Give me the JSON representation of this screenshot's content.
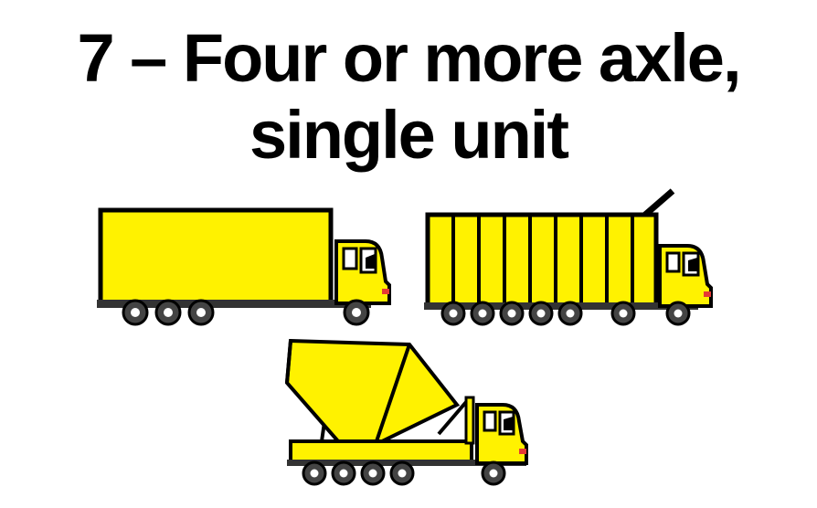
{
  "title": {
    "line1": "7 – Four or more axle,",
    "line2": "single unit"
  },
  "colors": {
    "body_yellow": "#FFF200",
    "outline": "#000000",
    "wheel": "#444444",
    "hub": "#FFFFFF",
    "cab_light_red": "#E53935"
  },
  "illustrations": [
    {
      "name": "box-truck-icon",
      "axles": 4
    },
    {
      "name": "dump-truck-icon",
      "axles": 7
    },
    {
      "name": "concrete-mixer-truck-icon",
      "axles": 5
    }
  ]
}
